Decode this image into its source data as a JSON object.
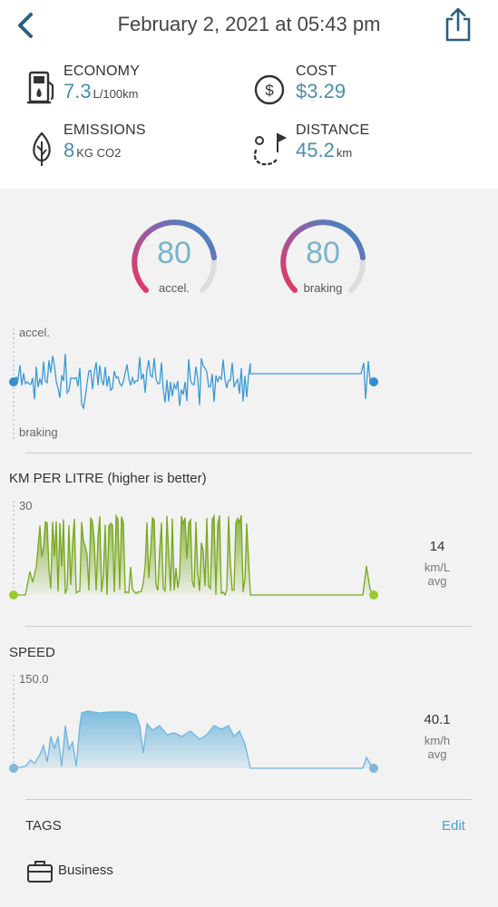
{
  "header": {
    "title": "February 2, 2021 at 05:43 pm"
  },
  "stats": {
    "economy": {
      "label": "ECONOMY",
      "value": "7.3",
      "unit": "L/100km"
    },
    "cost": {
      "label": "COST",
      "value": "$3.29"
    },
    "emissions": {
      "label": "EMISSIONS",
      "value": "8",
      "unit": "KG CO2"
    },
    "distance": {
      "label": "DISTANCE",
      "value": "45.2",
      "unit": "km"
    }
  },
  "scores": {
    "accel": {
      "value": "80",
      "label": "accel."
    },
    "braking": {
      "value": "80",
      "label": "braking"
    }
  },
  "accel_chart": {
    "top_label": "accel.",
    "bottom_label": "braking"
  },
  "km_per_litre": {
    "title": "KM PER LITRE (higher is better)",
    "max_label": "30",
    "avg_value": "14",
    "avg_unit_1": "km/L",
    "avg_unit_2": "avg"
  },
  "speed": {
    "title": "SPEED",
    "max_label": "150.0",
    "avg_value": "40.1",
    "avg_unit_1": "km/h",
    "avg_unit_2": "avg"
  },
  "tags": {
    "title": "TAGS",
    "edit_label": "Edit",
    "items": [
      "Business"
    ]
  },
  "colors": {
    "blue": "#2f8fd0",
    "green": "#78a81f",
    "light_blue": "#6fb6dc",
    "pink": "#e0365c"
  }
}
